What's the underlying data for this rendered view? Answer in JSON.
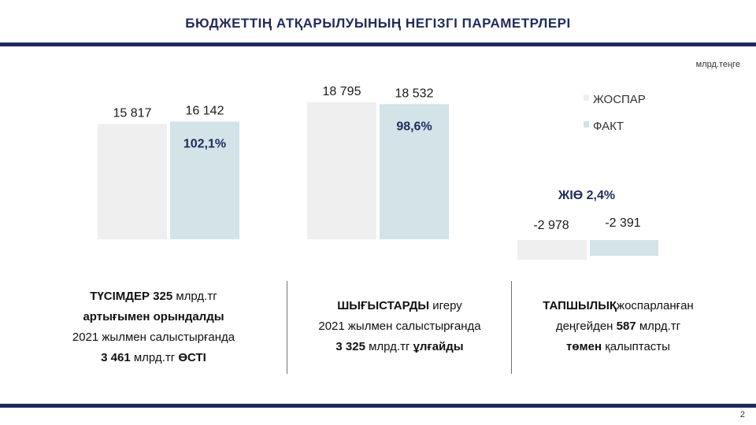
{
  "header": {
    "title": "БЮДЖЕТТІҢ АТҚАРЫЛУЫНЫҢ НЕГІЗГІ ПАРАМЕТРЛЕРІ",
    "unit": "млрд.теңге",
    "page_number": "2"
  },
  "colors": {
    "plan": "#efefef",
    "fact": "#d3e3e7",
    "navy": "#1f2b5e"
  },
  "chart_data": {
    "type": "bar",
    "categories": [
      "ТҮСІМДЕР",
      "ШЫҒЫСТАР",
      "ТАПШЫЛЫҚ"
    ],
    "series": [
      {
        "name": "ЖОСПАР",
        "values": [
          15817,
          18795,
          -2978
        ],
        "labels": [
          "15 817",
          "18 795",
          "-2 978"
        ]
      },
      {
        "name": "ФАКТ",
        "values": [
          16142,
          18532,
          -2391
        ],
        "labels": [
          "16 142",
          "18 532",
          "-2 391"
        ]
      }
    ],
    "annotations": [
      "102,1%",
      "98,6%",
      "ЖІӨ 2,4%"
    ],
    "legend": [
      "ЖОСПАР",
      "ФАКТ"
    ],
    "legend_position": "right"
  },
  "summaries": {
    "revenue": {
      "l1_bold": "ТҮСІМДЕР 325",
      "l1_rest": " млрд.тг",
      "l2_bold": "артығымен орындалды",
      "l3": "2021 жылмен салыстырғанда",
      "l4_bold": "3 461",
      "l4_mid": " млрд.тг ",
      "l4_bold2": "ӨСТІ"
    },
    "expenses": {
      "l1_bold": "ШЫҒЫСТАРДЫ",
      "l1_rest": " игеру",
      "l2": "2021 жылмен салыстырғанда",
      "l3_bold": "3 325",
      "l3_mid": " млрд.тг ",
      "l3_bold2": "ұлғайды"
    },
    "deficit": {
      "l1_bold": "ТАПШЫЛЫҚ",
      "l1_rest": "жоспарланған",
      "l2_a": "деңгейден ",
      "l2_bold": "587",
      "l2_rest": " млрд.тг",
      "l3_bold": "төмен",
      "l3_rest": " қалыптасты"
    }
  }
}
